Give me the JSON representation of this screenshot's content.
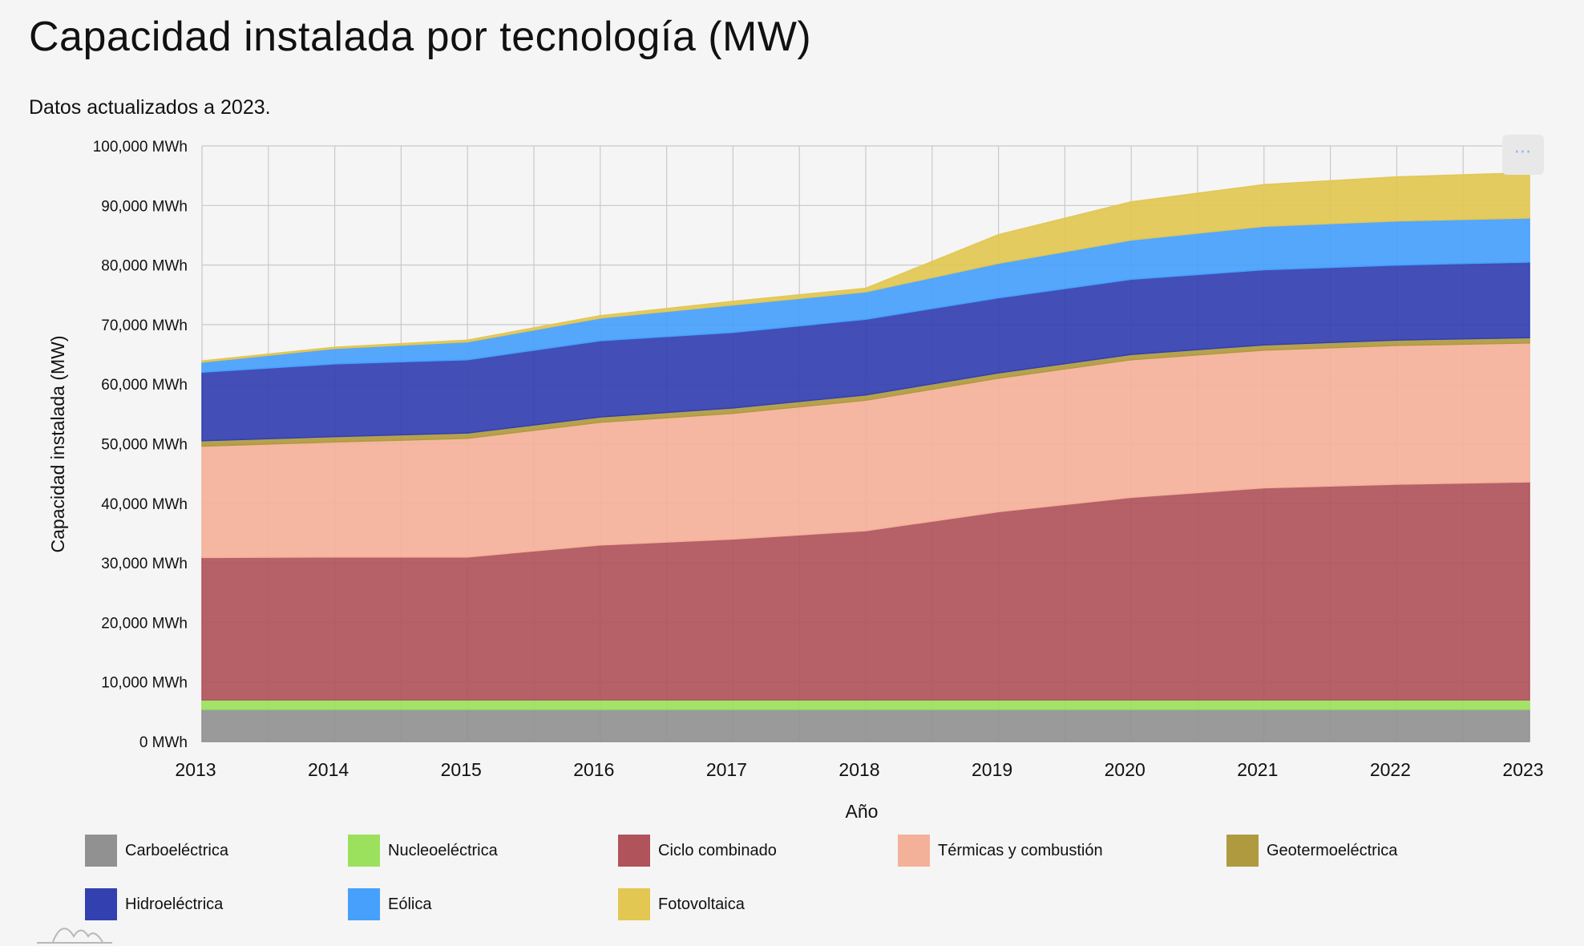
{
  "header": {
    "title": "Capacidad instalada por tecnología (MW)",
    "subtitle": "Datos actualizados a 2023."
  },
  "chart_data": {
    "type": "area",
    "stacked": true,
    "title": "Capacidad instalada por tecnología (MW)",
    "subtitle": "Datos actualizados a 2023.",
    "xlabel": "Año",
    "ylabel": "Capacidad instalada (MW)",
    "x": [
      2013,
      2014,
      2015,
      2016,
      2017,
      2018,
      2019,
      2020,
      2021,
      2022,
      2023
    ],
    "xticks": [
      "2013",
      "2014",
      "2015",
      "2016",
      "2017",
      "2018",
      "2019",
      "2020",
      "2021",
      "2022",
      "2023"
    ],
    "ylim": [
      0,
      100000
    ],
    "yticks": [
      "0 MWh",
      "10,000 MWh",
      "20,000 MWh",
      "30,000 MWh",
      "40,000 MWh",
      "50,000 MWh",
      "60,000 MWh",
      "70,000 MWh",
      "80,000 MWh",
      "90,000 MWh",
      "100,000 MWh"
    ],
    "grid": true,
    "legend_position": "bottom",
    "series": [
      {
        "name": "Carboeléctrica",
        "color": "#919191",
        "values": [
          5400,
          5400,
          5400,
          5400,
          5400,
          5400,
          5400,
          5400,
          5400,
          5400,
          5400
        ]
      },
      {
        "name": "Nucleoeléctrica",
        "color": "#9be15d",
        "values": [
          1600,
          1600,
          1600,
          1600,
          1600,
          1600,
          1600,
          1600,
          1600,
          1600,
          1600
        ]
      },
      {
        "name": "Ciclo combinado",
        "color": "#b0535b",
        "values": [
          23900,
          24000,
          24000,
          26000,
          27000,
          28400,
          31600,
          34000,
          35600,
          36200,
          36600
        ]
      },
      {
        "name": "Térmicas y combustión",
        "color": "#f4b19a",
        "values": [
          18700,
          19300,
          19900,
          20600,
          21100,
          21900,
          22400,
          23100,
          23100,
          23300,
          23300
        ]
      },
      {
        "name": "Geotermoeléctrica",
        "color": "#b09a3f",
        "values": [
          900,
          900,
          900,
          900,
          900,
          900,
          900,
          900,
          900,
          900,
          900
        ]
      },
      {
        "name": "Hidroeléctrica",
        "color": "#3340b0",
        "values": [
          11500,
          12200,
          12300,
          12800,
          12700,
          12700,
          12600,
          12600,
          12600,
          12600,
          12700
        ]
      },
      {
        "name": "Eólica",
        "color": "#46a0fc",
        "values": [
          1700,
          2600,
          3000,
          3800,
          4600,
          4600,
          5800,
          6600,
          7300,
          7400,
          7400
        ]
      },
      {
        "name": "Fotovoltaica",
        "color": "#e2c753",
        "values": [
          200,
          200,
          300,
          400,
          600,
          600,
          4800,
          6400,
          7000,
          7400,
          7600
        ]
      }
    ]
  }
}
